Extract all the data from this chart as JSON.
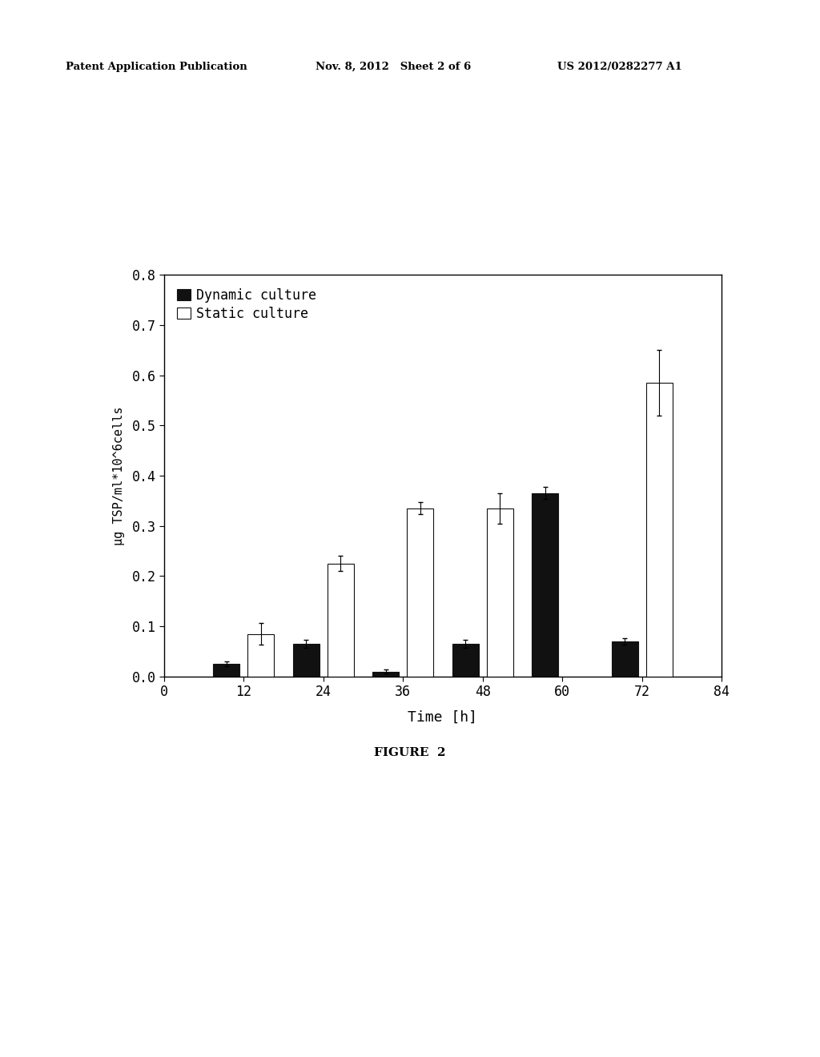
{
  "time_points": [
    12,
    24,
    36,
    48,
    60,
    72
  ],
  "dynamic_values": [
    0.025,
    0.065,
    0.01,
    0.065,
    0.365,
    0.07
  ],
  "static_values": [
    0.085,
    0.225,
    0.335,
    0.335,
    0.0,
    0.585
  ],
  "dynamic_errors": [
    0.005,
    0.008,
    0.004,
    0.008,
    0.012,
    0.007
  ],
  "static_errors": [
    0.022,
    0.015,
    0.012,
    0.03,
    0.0,
    0.065
  ],
  "ylim": [
    0,
    0.8
  ],
  "xlim": [
    0,
    84
  ],
  "yticks": [
    0,
    0.1,
    0.2,
    0.3,
    0.4,
    0.5,
    0.6,
    0.7,
    0.8
  ],
  "xticks": [
    0,
    12,
    24,
    36,
    48,
    60,
    72,
    84
  ],
  "xlabel": "Time [h]",
  "ylabel": "μg TSP/ml*10^6cells",
  "legend_dynamic": "Dynamic culture",
  "legend_static": "Static culture",
  "figure_caption": "FIGURE  2",
  "header_left": "Patent Application Publication",
  "header_middle": "Nov. 8, 2012   Sheet 2 of 6",
  "header_right": "US 2012/0282277 A1",
  "bar_width": 4.0,
  "bar_gap": 1.2,
  "dynamic_color": "#111111",
  "static_color": "#ffffff",
  "static_edgecolor": "#111111",
  "dynamic_edgecolor": "#111111",
  "background_color": "#ffffff"
}
